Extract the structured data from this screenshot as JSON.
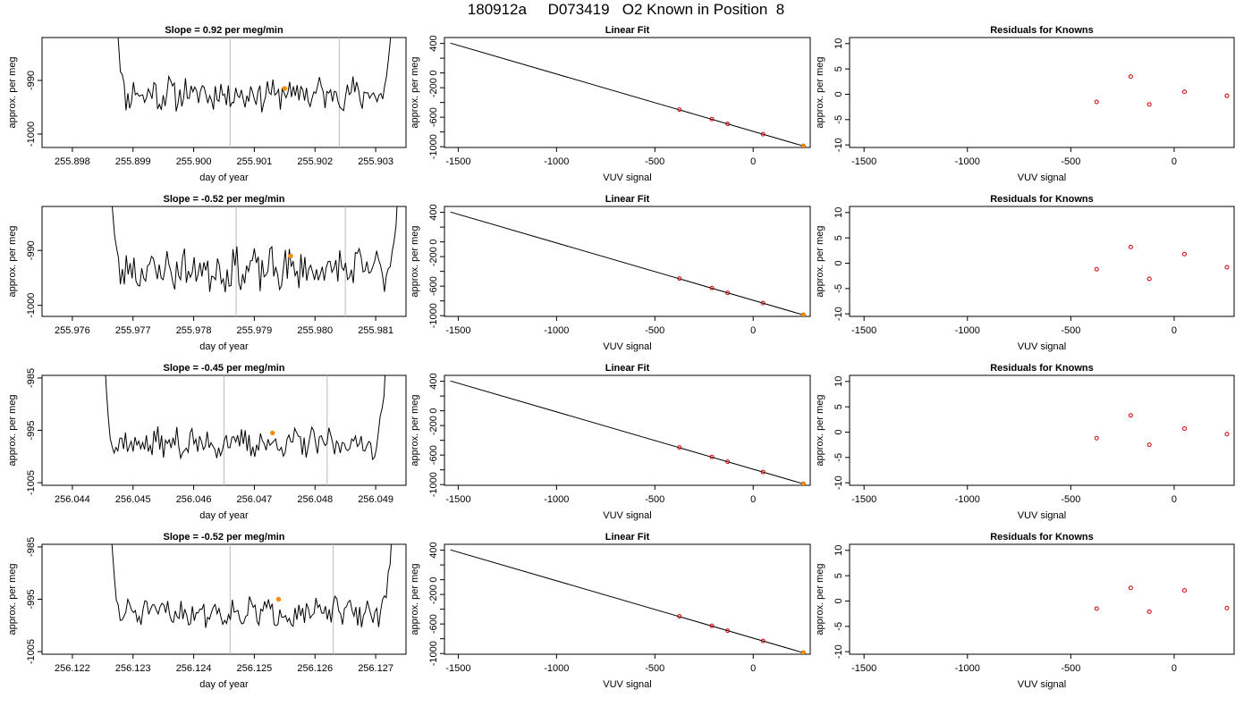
{
  "figure": {
    "title": "180912a     D073419   O2 Known in Position  8",
    "colors": {
      "line": "#000000",
      "highlight": "#ff8c00",
      "residual": "#cc0000",
      "vline": "#bbbbbb"
    }
  },
  "chart_data": [
    {
      "type": "line",
      "row": 0,
      "panel": "timeseries",
      "title": "Slope =  0.92  per meg/min",
      "xlabel": "day of year",
      "ylabel": "approx. per meg",
      "xlim": [
        255.8975,
        255.9035
      ],
      "ylim": [
        -1002.5,
        -982
      ],
      "xticks": [
        255.898,
        255.899,
        255.9,
        255.901,
        255.902,
        255.903
      ],
      "xtick_labels": [
        "255.898",
        "255.899",
        "255.900",
        "255.901",
        "255.902",
        "255.903"
      ],
      "yticks": [
        -1000,
        -990
      ],
      "ytick_labels": [
        "-1000",
        "-990"
      ],
      "vlines": [
        255.9006,
        255.9024
      ],
      "series": [
        {
          "x_start": 255.8987,
          "x_end": 255.9033,
          "n": 150,
          "base": -992.5,
          "amp": 2.6,
          "seed": 11
        }
      ],
      "highlight_point": {
        "x": 255.9015,
        "y": -991.5
      }
    },
    {
      "type": "line",
      "row": 1,
      "panel": "timeseries",
      "title": "Slope =  -0.52  per meg/min",
      "xlabel": "day of year",
      "ylabel": "approx. per meg",
      "xlim": [
        255.9755,
        255.9815
      ],
      "ylim": [
        -1002,
        -982
      ],
      "xticks": [
        255.976,
        255.977,
        255.978,
        255.979,
        255.98,
        255.981
      ],
      "xtick_labels": [
        "255.976",
        "255.977",
        "255.978",
        "255.979",
        "255.980",
        "255.981"
      ],
      "yticks": [
        -1000,
        -990
      ],
      "ytick_labels": [
        "-1000",
        "-990"
      ],
      "vlines": [
        255.9787,
        255.9805
      ],
      "series": [
        {
          "x_start": 255.9766,
          "x_end": 255.9814,
          "n": 150,
          "base": -993.5,
          "amp": 3.2,
          "seed": 23
        }
      ],
      "highlight_point": {
        "x": 255.9796,
        "y": -991
      }
    },
    {
      "type": "line",
      "row": 2,
      "panel": "timeseries",
      "title": "Slope =  -0.45  per meg/min",
      "xlabel": "day of year",
      "ylabel": "approx. per meg",
      "xlim": [
        256.0435,
        256.0495
      ],
      "ylim": [
        -1005.5,
        -984.5
      ],
      "xticks": [
        256.044,
        256.045,
        256.046,
        256.047,
        256.048,
        256.049
      ],
      "xtick_labels": [
        "256.044",
        "256.045",
        "256.046",
        "256.047",
        "256.048",
        "256.049"
      ],
      "yticks": [
        -1005,
        -995,
        -985
      ],
      "ytick_labels": [
        "-1005",
        "-995",
        "-985"
      ],
      "vlines": [
        256.0465,
        256.0482
      ],
      "series": [
        {
          "x_start": 256.0445,
          "x_end": 256.0492,
          "n": 150,
          "base": -997.5,
          "amp": 2.4,
          "seed": 37
        }
      ],
      "highlight_point": {
        "x": 256.0473,
        "y": -995.5
      }
    },
    {
      "type": "line",
      "row": 3,
      "panel": "timeseries",
      "title": "Slope =  -0.52  per meg/min",
      "xlabel": "day of year",
      "ylabel": "approx. per meg",
      "xlim": [
        256.1215,
        256.1275
      ],
      "ylim": [
        -1005.5,
        -984.5
      ],
      "xticks": [
        256.122,
        256.123,
        256.124,
        256.125,
        256.126,
        256.127
      ],
      "xtick_labels": [
        "256.122",
        "256.123",
        "256.124",
        "256.125",
        "256.126",
        "256.127"
      ],
      "yticks": [
        -1005,
        -995,
        -985
      ],
      "ytick_labels": [
        "-1005",
        "-995",
        "-985"
      ],
      "vlines": [
        256.1246,
        256.1263
      ],
      "series": [
        {
          "x_start": 256.1226,
          "x_end": 256.1273,
          "n": 150,
          "base": -997.5,
          "amp": 2.2,
          "seed": 51
        }
      ],
      "highlight_point": {
        "x": 256.1254,
        "y": -995
      }
    },
    {
      "type": "scatter",
      "row": 0,
      "panel": "linfit",
      "title": "Linear Fit",
      "xlabel": "VUV signal",
      "ylabel": "approx. per meg",
      "xlim": [
        -1570,
        290
      ],
      "ylim": [
        -1010,
        480
      ],
      "xticks": [
        -1500,
        -1000,
        -500,
        0
      ],
      "xtick_labels": [
        "-1500",
        "-1000",
        "-500",
        "0"
      ],
      "yticks": [
        -1000,
        -800,
        -600,
        -400,
        -200,
        0,
        200,
        400
      ],
      "ytick_labels": [
        "-1000",
        "",
        "-600",
        "",
        "-200",
        "0",
        "",
        "400"
      ],
      "fit_line": {
        "x1": -1540,
        "y1": 405,
        "x2": 255,
        "y2": -990
      },
      "points": [
        {
          "x": -375,
          "y": -497
        },
        {
          "x": -210,
          "y": -625
        },
        {
          "x": -130,
          "y": -690
        },
        {
          "x": 50,
          "y": -830
        }
      ],
      "highlight_point": {
        "x": 255,
        "y": -990
      }
    },
    {
      "type": "scatter",
      "row": 1,
      "panel": "linfit",
      "title": "Linear Fit",
      "xlabel": "VUV signal",
      "ylabel": "approx. per meg",
      "xlim": [
        -1570,
        290
      ],
      "ylim": [
        -1010,
        480
      ],
      "xticks": [
        -1500,
        -1000,
        -500,
        0
      ],
      "xtick_labels": [
        "-1500",
        "-1000",
        "-500",
        "0"
      ],
      "yticks": [
        -1000,
        -800,
        -600,
        -400,
        -200,
        0,
        200,
        400
      ],
      "ytick_labels": [
        "-1000",
        "",
        "-600",
        "",
        "-200",
        "0",
        "",
        "400"
      ],
      "fit_line": {
        "x1": -1540,
        "y1": 405,
        "x2": 255,
        "y2": -990
      },
      "points": [
        {
          "x": -375,
          "y": -497
        },
        {
          "x": -210,
          "y": -625
        },
        {
          "x": -130,
          "y": -690
        },
        {
          "x": 50,
          "y": -830
        }
      ],
      "highlight_point": {
        "x": 255,
        "y": -990
      }
    },
    {
      "type": "scatter",
      "row": 2,
      "panel": "linfit",
      "title": "Linear Fit",
      "xlabel": "VUV signal",
      "ylabel": "approx. per meg",
      "xlim": [
        -1570,
        290
      ],
      "ylim": [
        -1010,
        480
      ],
      "xticks": [
        -1500,
        -1000,
        -500,
        0
      ],
      "xtick_labels": [
        "-1500",
        "-1000",
        "-500",
        "0"
      ],
      "yticks": [
        -1000,
        -800,
        -600,
        -400,
        -200,
        0,
        200,
        400
      ],
      "ytick_labels": [
        "-1000",
        "",
        "-600",
        "",
        "-200",
        "0",
        "",
        "400"
      ],
      "fit_line": {
        "x1": -1540,
        "y1": 405,
        "x2": 255,
        "y2": -990
      },
      "points": [
        {
          "x": -375,
          "y": -497
        },
        {
          "x": -210,
          "y": -625
        },
        {
          "x": -130,
          "y": -690
        },
        {
          "x": 50,
          "y": -830
        }
      ],
      "highlight_point": {
        "x": 255,
        "y": -990
      }
    },
    {
      "type": "scatter",
      "row": 3,
      "panel": "linfit",
      "title": "Linear Fit",
      "xlabel": "VUV signal",
      "ylabel": "approx. per meg",
      "xlim": [
        -1570,
        290
      ],
      "ylim": [
        -1010,
        480
      ],
      "xticks": [
        -1500,
        -1000,
        -500,
        0
      ],
      "xtick_labels": [
        "-1500",
        "-1000",
        "-500",
        "0"
      ],
      "yticks": [
        -1000,
        -800,
        -600,
        -400,
        -200,
        0,
        200,
        400
      ],
      "ytick_labels": [
        "-1000",
        "",
        "-600",
        "",
        "-200",
        "0",
        "",
        "400"
      ],
      "fit_line": {
        "x1": -1540,
        "y1": 405,
        "x2": 255,
        "y2": -990
      },
      "points": [
        {
          "x": -375,
          "y": -497
        },
        {
          "x": -210,
          "y": -625
        },
        {
          "x": -130,
          "y": -690
        },
        {
          "x": 50,
          "y": -830
        }
      ],
      "highlight_point": {
        "x": 255,
        "y": -990
      }
    },
    {
      "type": "scatter",
      "row": 0,
      "panel": "residuals",
      "title": "Residuals for Knowns",
      "xlabel": "VUV signal",
      "ylabel": "approx. per meg",
      "xlim": [
        -1570,
        290
      ],
      "ylim": [
        -10.5,
        11.2
      ],
      "xticks": [
        -1500,
        -1000,
        -500,
        0
      ],
      "xtick_labels": [
        "-1500",
        "-1000",
        "-500",
        "0"
      ],
      "yticks": [
        -10,
        -5,
        0,
        5,
        10
      ],
      "ytick_labels": [
        "-10",
        "-5",
        "0",
        "5",
        "10"
      ],
      "points": [
        {
          "x": -375,
          "y": -1.5
        },
        {
          "x": -210,
          "y": 3.5
        },
        {
          "x": -120,
          "y": -2.0
        },
        {
          "x": 50,
          "y": 0.5
        },
        {
          "x": 255,
          "y": -0.3
        }
      ]
    },
    {
      "type": "scatter",
      "row": 1,
      "panel": "residuals",
      "title": "Residuals for Knowns",
      "xlabel": "VUV signal",
      "ylabel": "approx. per meg",
      "xlim": [
        -1570,
        290
      ],
      "ylim": [
        -10.5,
        11.2
      ],
      "xticks": [
        -1500,
        -1000,
        -500,
        0
      ],
      "xtick_labels": [
        "-1500",
        "-1000",
        "-500",
        "0"
      ],
      "yticks": [
        -10,
        -5,
        0,
        5,
        10
      ],
      "ytick_labels": [
        "-10",
        "-5",
        "0",
        "5",
        "10"
      ],
      "points": [
        {
          "x": -375,
          "y": -1.2
        },
        {
          "x": -210,
          "y": 3.2
        },
        {
          "x": -120,
          "y": -3.1
        },
        {
          "x": 50,
          "y": 1.8
        },
        {
          "x": 255,
          "y": -0.8
        }
      ]
    },
    {
      "type": "scatter",
      "row": 2,
      "panel": "residuals",
      "title": "Residuals for Knowns",
      "xlabel": "VUV signal",
      "ylabel": "approx. per meg",
      "xlim": [
        -1570,
        290
      ],
      "ylim": [
        -10.5,
        11.2
      ],
      "xticks": [
        -1500,
        -1000,
        -500,
        0
      ],
      "xtick_labels": [
        "-1500",
        "-1000",
        "-500",
        "0"
      ],
      "yticks": [
        -10,
        -5,
        0,
        5,
        10
      ],
      "ytick_labels": [
        "-10",
        "-5",
        "0",
        "5",
        "10"
      ],
      "points": [
        {
          "x": -375,
          "y": -1.2
        },
        {
          "x": -210,
          "y": 3.3
        },
        {
          "x": -120,
          "y": -2.5
        },
        {
          "x": 50,
          "y": 0.7
        },
        {
          "x": 255,
          "y": -0.4
        }
      ]
    },
    {
      "type": "scatter",
      "row": 3,
      "panel": "residuals",
      "title": "Residuals for Knowns",
      "xlabel": "VUV signal",
      "ylabel": "approx. per meg",
      "xlim": [
        -1570,
        290
      ],
      "ylim": [
        -10.5,
        11.2
      ],
      "xticks": [
        -1500,
        -1000,
        -500,
        0
      ],
      "xtick_labels": [
        "-1500",
        "-1000",
        "-500",
        "0"
      ],
      "yticks": [
        -10,
        -5,
        0,
        5,
        10
      ],
      "ytick_labels": [
        "-10",
        "-5",
        "0",
        "5",
        "10"
      ],
      "points": [
        {
          "x": -375,
          "y": -1.5
        },
        {
          "x": -210,
          "y": 2.6
        },
        {
          "x": -120,
          "y": -2.1
        },
        {
          "x": 50,
          "y": 2.1
        },
        {
          "x": 255,
          "y": -1.4
        }
      ]
    }
  ]
}
